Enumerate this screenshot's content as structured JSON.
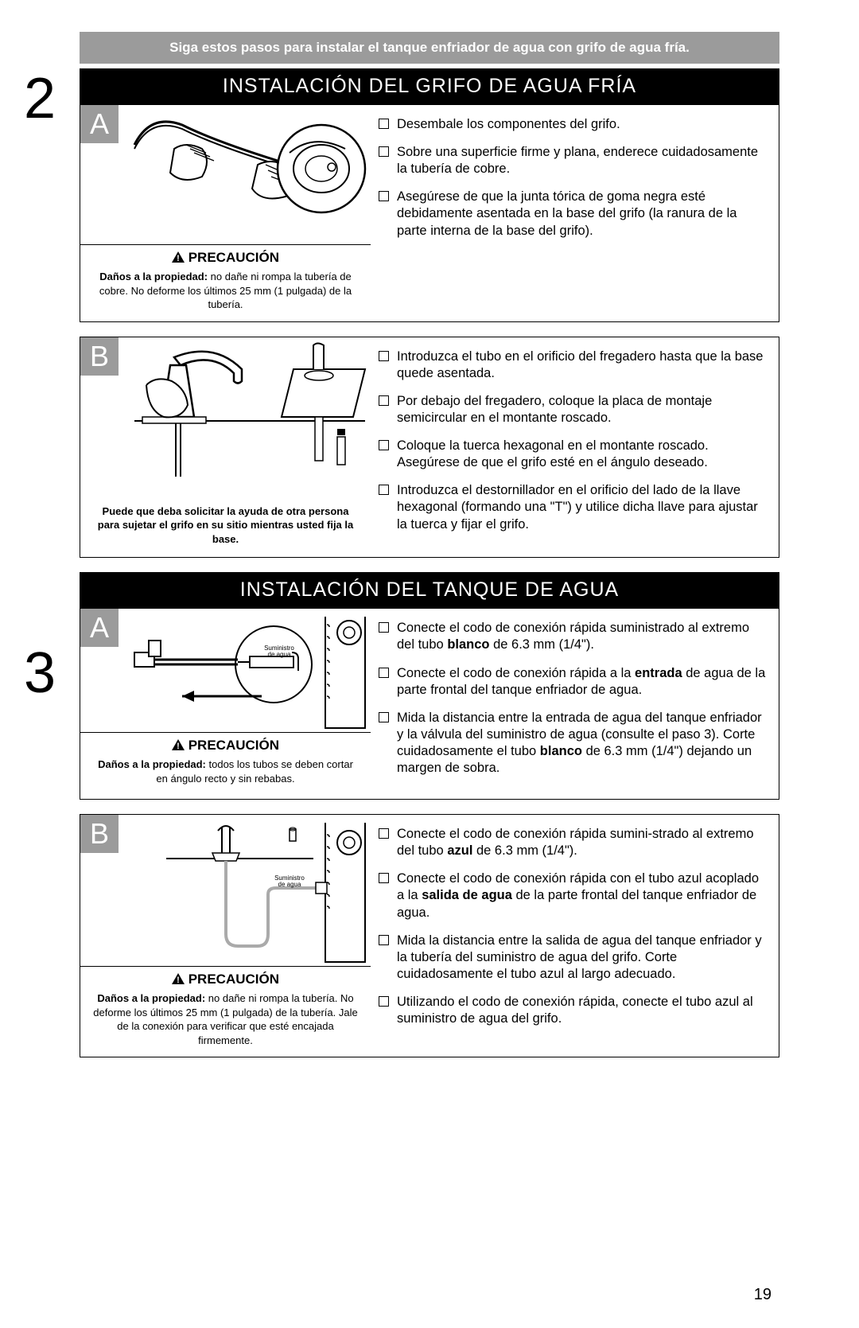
{
  "page_number": "19",
  "intro_band": "Siga estos pasos para instalar el tanque enfriador de agua con grifo de agua fría.",
  "step2": {
    "number": "2",
    "title": "INSTALACIÓN DEL GRIFO DE AGUA  FRÍA",
    "A": {
      "letter": "A",
      "caution_label": "PRECAUCIÓN",
      "caution_bold": "Daños a la propiedad:",
      "caution_rest": " no dañe ni rompa la tubería de cobre. No deforme los últimos 25 mm (1 pulgada) de la tubería.",
      "items": [
        "Desembale los componentes del grifo.",
        "Sobre una superficie firme y plana, enderece cuidadosamente la tubería de cobre.",
        "Asegúrese de que la junta tórica de goma negra esté debidamente asentada en la base del grifo (la ranura de la parte interna de la base del grifo)."
      ]
    },
    "B": {
      "letter": "B",
      "helper": "Puede que deba solicitar la ayuda de otra persona para sujetar el grifo en su sitio mientras usted fija la base.",
      "items": [
        "Introduzca el tubo en el orificio del fregadero hasta que la base quede asentada.",
        "Por debajo del fregadero, coloque la placa de montaje semicircular en el montante roscado.",
        "Coloque la tuerca hexagonal en el montante roscado. Asegúrese de que el grifo esté en el ángulo deseado.",
        "Introduzca el destornillador en el orificio del lado de la llave hexagonal (formando una \"T\") y utilice dicha llave para ajustar la tuerca y fijar el grifo."
      ]
    }
  },
  "step3": {
    "number": "3",
    "title": "INSTALACIÓN DEL TANQUE DE AGUA",
    "A": {
      "letter": "A",
      "caution_label": "PRECAUCIÓN",
      "caution_bold": "Daños a la propiedad:",
      "caution_rest": " todos los tubos se deben cortar en ángulo recto y sin rebabas.",
      "supply_label": "Suministro de agua",
      "items_html": [
        "Conecte el codo de conexión rápida suministrado al extremo del tubo <b>blanco</b> de 6.3 mm (1/4\").",
        "Conecte el codo de conexión rápida a la <b>entrada</b> de agua de la parte frontal del tanque enfriador de agua.",
        "Mida la distancia entre la entrada de agua del tanque enfriador y la válvula del suministro de agua (consulte el paso 3). Corte cuidadosamente el tubo <b>blanco</b> de 6.3 mm (1/4\") dejando un margen de sobra."
      ]
    },
    "B": {
      "letter": "B",
      "caution_label": "PRECAUCIÓN",
      "caution_bold": "Daños a la propiedad:",
      "caution_rest": " no dañe ni rompa la tubería. No deforme los últimos 25 mm (1 pulgada) de la tubería. Jale de la conexión para verificar que esté encajada firmemente.",
      "supply_label": "Suministro de agua",
      "items_html": [
        "Conecte el codo de conexión rápida sumini-strado al extremo del tubo <b>azul</b> de 6.3 mm (1/4\").",
        "Conecte el codo de conexión rápida con el tubo azul acoplado a la <b>salida de agua</b> de la parte frontal del tanque enfriador de agua.",
        "Mida la distancia entre la salida de agua del tanque enfriador y la tubería del suministro de agua del grifo. Corte cuidadosamente el tubo azul al largo adecuado.",
        "Utilizando el codo de conexión rápida, conecte el tubo azul al suministro de agua del grifo."
      ]
    }
  },
  "colors": {
    "band_bg": "#9b9b9b",
    "title_bg": "#000000",
    "text": "#000000",
    "page_bg": "#ffffff"
  }
}
